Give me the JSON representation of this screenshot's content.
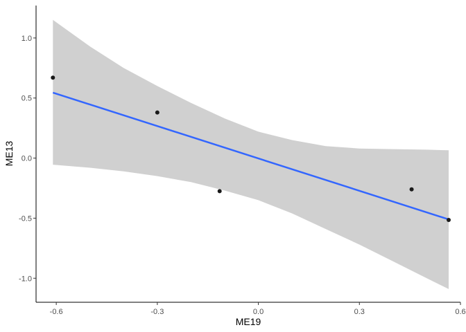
{
  "chart_data": {
    "type": "scatter",
    "xlabel": "ME19",
    "ylabel": "ME13",
    "xlim": [
      -0.66,
      0.6
    ],
    "ylim": [
      -1.2,
      1.27
    ],
    "x_ticks": [
      -0.6,
      -0.3,
      0.0,
      0.3,
      0.6
    ],
    "x_tick_labels": [
      "-0.6",
      "-0.3",
      "0.0",
      "0.3",
      "0.6"
    ],
    "y_ticks": [
      -1.0,
      -0.5,
      0.0,
      0.5,
      1.0
    ],
    "y_tick_labels": [
      "-1.0",
      "-0.5",
      "0.0",
      "0.5",
      "1.0"
    ],
    "grid": false,
    "points": [
      {
        "x": -0.61,
        "y": 0.67
      },
      {
        "x": -0.3,
        "y": 0.38
      },
      {
        "x": -0.115,
        "y": -0.275
      },
      {
        "x": 0.455,
        "y": -0.26
      },
      {
        "x": 0.565,
        "y": -0.515
      }
    ],
    "fit_line": {
      "x": [
        -0.61,
        0.565
      ],
      "y": [
        0.545,
        -0.51
      ],
      "color": "#3366ff"
    },
    "confidence_band": {
      "x": [
        -0.61,
        -0.5,
        -0.4,
        -0.3,
        -0.2,
        -0.1,
        0.0,
        0.1,
        0.2,
        0.3,
        0.4,
        0.5,
        0.565
      ],
      "upper": [
        1.15,
        0.93,
        0.75,
        0.6,
        0.46,
        0.33,
        0.22,
        0.15,
        0.1,
        0.08,
        0.075,
        0.07,
        0.065
      ],
      "lower": [
        -0.055,
        -0.08,
        -0.11,
        -0.15,
        -0.2,
        -0.27,
        -0.35,
        -0.46,
        -0.59,
        -0.72,
        -0.86,
        -1.0,
        -1.09
      ],
      "color": "#d0d0d0"
    },
    "point_color": "#1a1a1a"
  }
}
